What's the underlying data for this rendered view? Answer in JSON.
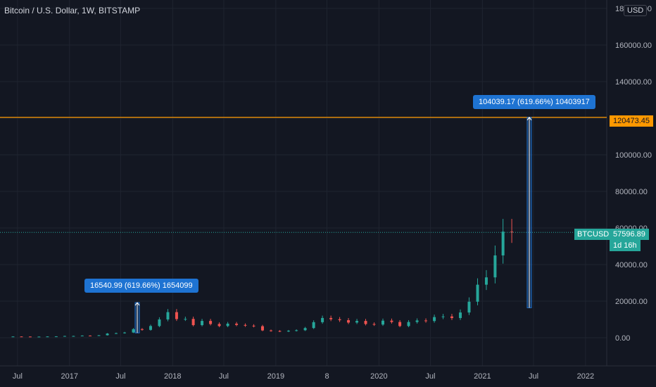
{
  "title": "Bitcoin / U.S. Dollar, 1W, BITSTAMP",
  "currency_button": "USD",
  "colors": {
    "background": "#131722",
    "grid": "#1f2430",
    "up": "#26a69a",
    "down": "#ef5350",
    "level_line": "#ff9800",
    "measure": "#1e73d2"
  },
  "axis": {
    "y_ticks": [
      "0.00",
      "20000.00",
      "40000.00",
      "60000.00",
      "80000.00",
      "100000.00",
      "120000.00",
      "140000.00",
      "160000.00",
      "180000.00"
    ],
    "x_ticks": [
      "Jul",
      "2017",
      "Jul",
      "2018",
      "Jul",
      "2019",
      "8",
      "2020",
      "Jul",
      "2021",
      "Jul",
      "2022"
    ]
  },
  "annotations": {
    "small_measure": "16540.99 (619.66%) 1654099",
    "large_measure": "104039.17 (619.66%) 10403917",
    "level_price": "120473.45",
    "symbol": "BTCUSD",
    "last_price": "57596.89",
    "countdown": "1d 16h"
  },
  "chart_data": {
    "type": "candlestick",
    "title": "Bitcoin / U.S. Dollar, 1W, BITSTAMP",
    "ylim": [
      -7000,
      185000
    ],
    "xlim": [
      "2016-05-15",
      "2022-06-01"
    ],
    "horizontal_line": 120473.45,
    "last_price": 57596.89,
    "series": [
      {
        "name": "BTCUSD",
        "x": [
          "2016-06",
          "2016-07",
          "2016-08",
          "2016-09",
          "2016-10",
          "2016-11",
          "2016-12",
          "2017-01",
          "2017-02",
          "2017-03",
          "2017-04",
          "2017-05",
          "2017-06",
          "2017-07",
          "2017-08",
          "2017-09",
          "2017-10",
          "2017-11",
          "2017-12",
          "2018-01",
          "2018-02",
          "2018-03",
          "2018-04",
          "2018-05",
          "2018-06",
          "2018-07",
          "2018-08",
          "2018-09",
          "2018-10",
          "2018-11",
          "2018-12",
          "2019-01",
          "2019-02",
          "2019-03",
          "2019-04",
          "2019-05",
          "2019-06",
          "2019-07",
          "2019-08",
          "2019-09",
          "2019-10",
          "2019-11",
          "2019-12",
          "2020-01",
          "2020-02",
          "2020-03",
          "2020-04",
          "2020-05",
          "2020-06",
          "2020-07",
          "2020-08",
          "2020-09",
          "2020-10",
          "2020-11",
          "2020-12",
          "2021-01",
          "2021-02",
          "2021-03",
          "2021-04"
        ],
        "values": [
          680,
          640,
          580,
          610,
          690,
          740,
          960,
          970,
          1180,
          1080,
          1350,
          2300,
          2500,
          2850,
          4700,
          4300,
          6400,
          10000,
          14000,
          10200,
          10300,
          6900,
          9200,
          7500,
          6400,
          7700,
          7000,
          6600,
          6300,
          4000,
          3700,
          3450,
          3800,
          4100,
          5300,
          8500,
          10800,
          10100,
          9600,
          8300,
          9200,
          7500,
          7200,
          9350,
          8600,
          6400,
          8600,
          9450,
          9140,
          11300,
          11650,
          10780,
          13800,
          19700,
          29000,
          33000,
          45000,
          58000,
          57596.89
        ]
      }
    ],
    "measurements": [
      {
        "from": "2017-08",
        "to": "2017-10",
        "value": 16540.99,
        "percent": 619.66
      },
      {
        "from": "2021-05",
        "to": "2021-05",
        "value": 104039.17,
        "percent": 619.66,
        "target": 120473.45
      }
    ]
  }
}
